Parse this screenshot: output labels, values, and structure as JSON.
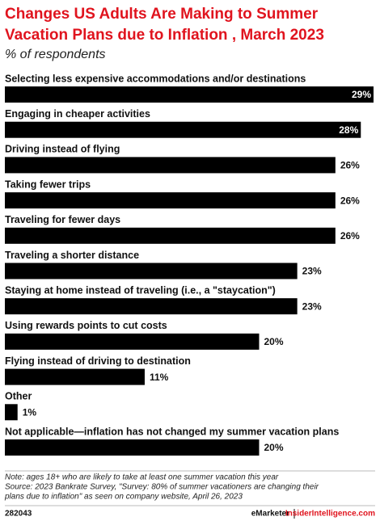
{
  "chart_data": {
    "type": "bar",
    "orientation": "horizontal",
    "title": [
      "Changes US Adults Are Making to Summer",
      "Vacation Plans due to Inflation , March 2023"
    ],
    "subtitle": "% of respondents",
    "categories": [
      "Selecting less expensive accommodations and/or destinations",
      "Engaging in cheaper activities",
      "Driving instead of flying",
      "Taking fewer trips",
      "Traveling for fewer days",
      "Traveling a shorter distance",
      "Staying at home instead of traveling (i.e., a \"staycation\")",
      "Using rewards points to cut costs",
      "Flying instead of driving to destination",
      "Other",
      "Not applicable—inflation has not changed my summer vacation plans"
    ],
    "values": [
      29,
      28,
      26,
      26,
      26,
      23,
      23,
      20,
      11,
      1,
      20
    ],
    "value_labels": [
      "29%",
      "28%",
      "26%",
      "26%",
      "26%",
      "23%",
      "23%",
      "20%",
      "11%",
      "1%",
      "20%"
    ],
    "color": "#000000",
    "notes": [
      "Note: ages 18+ who are likely to take at least one summer vacation this year",
      "Source: 2023 Bankrate Survey, \"Survey: 80% of summer vacationers are changing their",
      "plans due to inflation\" as seen on company website, April 26, 2023"
    ],
    "footer": {
      "id": "282043",
      "brand": "eMarketer",
      "site": "InsiderIntelligence.com"
    }
  }
}
